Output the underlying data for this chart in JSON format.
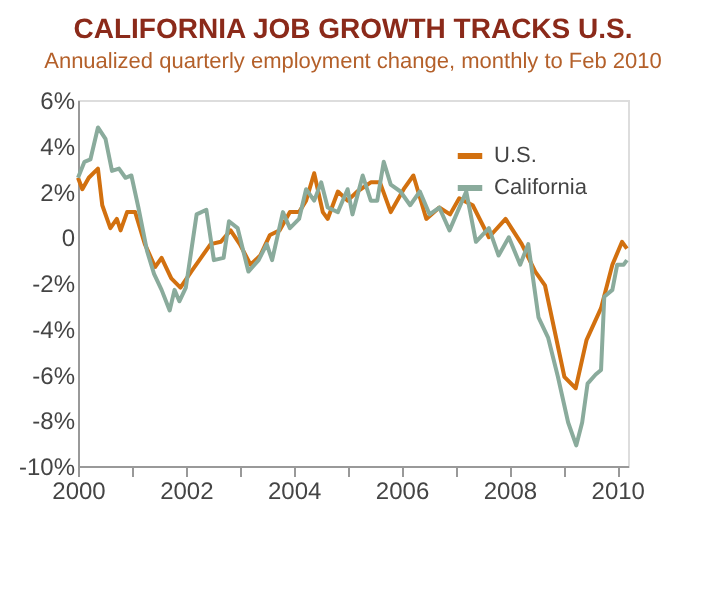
{
  "chart_data": {
    "type": "line",
    "title": "CALIFORNIA JOB GROWTH TRACKS U.S.",
    "subtitle": "Annualized quarterly employment change, monthly to Feb 2010",
    "xlim": [
      2000,
      2010.2
    ],
    "xticks": [
      2000,
      {
        "value": 2001,
        "label": null
      },
      2002,
      {
        "value": 2003,
        "label": null
      },
      2004,
      {
        "value": 2005,
        "label": null
      },
      2006,
      {
        "value": 2007,
        "label": null
      },
      2008,
      {
        "value": 2009,
        "label": null
      },
      2010
    ],
    "ylim": [
      -10,
      6
    ],
    "yticks": [
      {
        "value": -10,
        "label": "-10%"
      },
      {
        "value": -8,
        "label": "-8%"
      },
      {
        "value": -6,
        "label": "-6%"
      },
      {
        "value": -4,
        "label": "-4%"
      },
      {
        "value": -2,
        "label": "-2%"
      },
      0,
      {
        "value": 2,
        "label": "2%"
      },
      {
        "value": 4,
        "label": "4%"
      },
      {
        "value": 6,
        "label": "6%"
      }
    ],
    "grid": false,
    "legend": "top right",
    "marker": "none",
    "line_style": "solid",
    "series": [
      {
        "name": "U.S.",
        "color": "#d2700f",
        "x": [
          2000.0,
          2000.08,
          2000.2,
          2000.37,
          2000.45,
          2000.6,
          2000.72,
          2000.79,
          2000.91,
          2001.06,
          2001.24,
          2001.43,
          2001.55,
          2001.73,
          2001.9,
          2002.1,
          2002.28,
          2002.46,
          2002.65,
          2002.83,
          2003.0,
          2003.2,
          2003.38,
          2003.56,
          2003.74,
          2003.93,
          2004.1,
          2004.23,
          2004.38,
          2004.54,
          2004.63,
          2004.82,
          2005.0,
          2005.18,
          2005.43,
          2005.6,
          2005.8,
          2006.04,
          2006.22,
          2006.46,
          2006.7,
          2006.9,
          2007.07,
          2007.32,
          2007.62,
          2007.93,
          2008.23,
          2008.48,
          2008.66,
          2008.84,
          2009.02,
          2009.23,
          2009.43,
          2009.7,
          2009.91,
          2010.09,
          2010.18
        ],
        "values": [
          2.6,
          2.1,
          2.6,
          3.0,
          1.4,
          0.4,
          0.8,
          0.3,
          1.1,
          1.1,
          -0.3,
          -1.3,
          -0.9,
          -1.8,
          -2.2,
          -1.5,
          -0.9,
          -0.3,
          -0.2,
          0.3,
          -0.3,
          -1.2,
          -0.8,
          0.1,
          0.3,
          1.1,
          1.1,
          1.6,
          2.8,
          1.1,
          0.8,
          2.0,
          1.6,
          2.0,
          2.4,
          2.4,
          1.1,
          2.1,
          2.7,
          0.8,
          1.3,
          1.0,
          1.7,
          1.4,
          0.0,
          0.8,
          -0.3,
          -1.5,
          -2.1,
          -4.1,
          -6.1,
          -6.6,
          -4.5,
          -3.1,
          -1.2,
          -0.2,
          -0.5
        ]
      },
      {
        "name": "California",
        "color": "#8aab9c",
        "x": [
          2000.0,
          2000.12,
          2000.23,
          2000.37,
          2000.51,
          2000.63,
          2000.76,
          2000.88,
          2000.99,
          2001.12,
          2001.28,
          2001.41,
          2001.55,
          2001.7,
          2001.79,
          2001.88,
          2002.0,
          2002.2,
          2002.38,
          2002.52,
          2002.7,
          2002.8,
          2002.96,
          2003.16,
          2003.35,
          2003.5,
          2003.6,
          2003.8,
          2003.93,
          2004.1,
          2004.23,
          2004.38,
          2004.51,
          2004.63,
          2004.82,
          2005.0,
          2005.09,
          2005.28,
          2005.43,
          2005.55,
          2005.67,
          2005.8,
          2005.98,
          2006.16,
          2006.34,
          2006.52,
          2006.7,
          2006.89,
          2007.2,
          2007.38,
          2007.62,
          2007.8,
          2007.99,
          2008.2,
          2008.35,
          2008.54,
          2008.72,
          2008.9,
          2009.09,
          2009.24,
          2009.35,
          2009.45,
          2009.6,
          2009.7,
          2009.76,
          2009.91,
          2010.0,
          2010.12,
          2010.18
        ],
        "values": [
          2.6,
          3.3,
          3.4,
          4.8,
          4.3,
          2.9,
          3.0,
          2.6,
          2.7,
          1.3,
          -0.6,
          -1.6,
          -2.3,
          -3.2,
          -2.3,
          -2.8,
          -2.2,
          1.0,
          1.2,
          -1.0,
          -0.9,
          0.7,
          0.4,
          -1.5,
          -1.0,
          -0.3,
          -1.0,
          1.1,
          0.4,
          0.8,
          2.1,
          1.6,
          2.4,
          1.3,
          1.1,
          2.1,
          1.0,
          2.7,
          1.6,
          1.6,
          3.3,
          2.3,
          2.0,
          1.4,
          2.0,
          1.0,
          1.3,
          0.3,
          2.0,
          -0.2,
          0.4,
          -0.8,
          0.0,
          -1.2,
          -0.3,
          -3.5,
          -4.4,
          -6.1,
          -8.1,
          -9.1,
          -8.1,
          -6.4,
          -6.0,
          -5.8,
          -2.6,
          -2.3,
          -1.2,
          -1.2,
          -1.0
        ]
      }
    ]
  }
}
